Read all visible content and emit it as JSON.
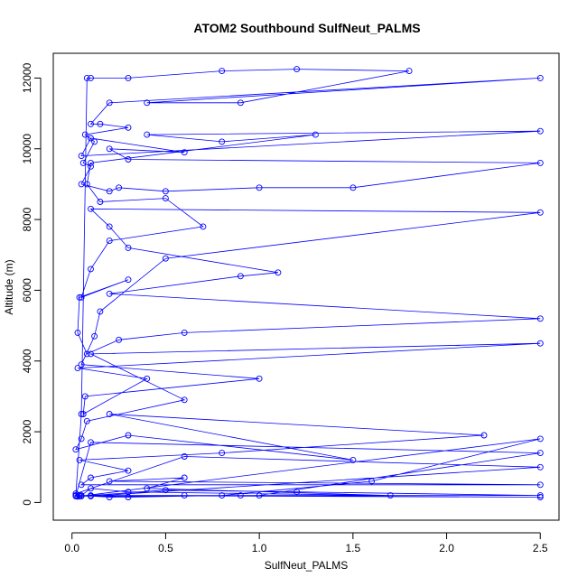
{
  "chart_data": {
    "type": "line",
    "markers": "open-circle",
    "title": "ATOM2 Southbound SulfNeut_PALMS",
    "xlabel": "SulfNeut_PALMS",
    "ylabel": "Altitude (m)",
    "xlim": [
      -0.1,
      2.6
    ],
    "ylim": [
      -500,
      12700
    ],
    "x_ticks": [
      0.0,
      0.5,
      1.0,
      1.5,
      2.0,
      2.5
    ],
    "x_tick_labels": [
      "0.0",
      "0.5",
      "1.0",
      "1.5",
      "2.0",
      "2.5"
    ],
    "y_ticks": [
      0,
      2000,
      4000,
      6000,
      8000,
      10000,
      12000
    ],
    "y_tick_labels": [
      "0",
      "2000",
      "4000",
      "6000",
      "8000",
      "10000",
      "12000"
    ],
    "grid": false,
    "legend": "none",
    "series_color": "#0000ff",
    "series": [
      {
        "x": [
          0.02,
          0.05,
          0.08,
          0.1,
          0.3,
          0.8,
          1.2,
          1.8,
          0.9,
          0.4,
          2.5,
          0.2,
          0.1,
          0.15,
          0.3,
          0.07,
          0.12,
          0.06,
          0.1,
          0.05,
          0.2,
          0.25,
          0.5,
          1.0,
          1.5,
          2.5,
          0.3,
          0.2,
          0.6,
          0.1,
          0.05,
          2.5,
          0.4,
          0.8,
          1.3,
          0.1,
          0.08,
          0.15,
          0.5,
          0.7,
          0.2,
          0.1,
          0.05,
          0.3,
          0.04,
          0.03,
          0.08,
          0.25,
          0.6,
          2.5,
          0.2,
          0.9,
          1.1,
          0.3,
          0.2,
          0.1,
          2.5,
          0.5,
          0.15,
          0.12,
          0.05,
          1.0,
          0.07,
          0.06,
          0.4,
          0.03,
          2.5,
          0.1,
          0.6,
          0.08,
          0.05,
          0.02,
          0.3,
          1.5,
          0.2,
          2.2,
          0.8,
          0.04,
          0.3,
          0.1,
          0.05,
          2.5,
          0.2,
          0.6,
          0.4,
          1.7,
          0.3,
          0.1,
          0.05,
          2.5,
          0.9,
          0.6,
          0.2,
          0.04,
          2.5,
          1.2,
          0.5,
          0.1,
          0.03,
          2.5,
          1.6,
          0.8,
          0.3,
          0.02,
          0.1,
          2.5,
          0.6,
          0.02,
          0.04,
          1.0,
          2.5,
          0.1,
          0.02,
          0.05
        ],
        "y": [
          200,
          2500,
          12000,
          12000,
          12000,
          12200,
          12250,
          12200,
          11300,
          11300,
          12000,
          11300,
          10700,
          10700,
          10600,
          10400,
          10200,
          9600,
          9500,
          9000,
          8800,
          8900,
          8800,
          8900,
          8900,
          9600,
          9700,
          10000,
          9900,
          10300,
          9800,
          10500,
          10400,
          10200,
          10400,
          9600,
          9000,
          8500,
          8600,
          7800,
          7400,
          6600,
          5800,
          6300,
          5800,
          4800,
          4200,
          4600,
          4800,
          5200,
          5900,
          6400,
          6500,
          7200,
          7800,
          8300,
          8200,
          6900,
          5400,
          4700,
          3900,
          3500,
          3000,
          2500,
          3500,
          3800,
          4500,
          4200,
          2900,
          2300,
          1800,
          1500,
          1900,
          1200,
          2500,
          1900,
          1400,
          1200,
          900,
          700,
          500,
          500,
          600,
          700,
          400,
          200,
          300,
          400,
          200,
          150,
          200,
          200,
          150,
          200,
          200,
          300,
          350,
          200,
          170,
          1800,
          600,
          200,
          150,
          200,
          180,
          1000,
          1300,
          250,
          180,
          200,
          1400,
          1700,
          180,
          180
        ]
      }
    ]
  }
}
